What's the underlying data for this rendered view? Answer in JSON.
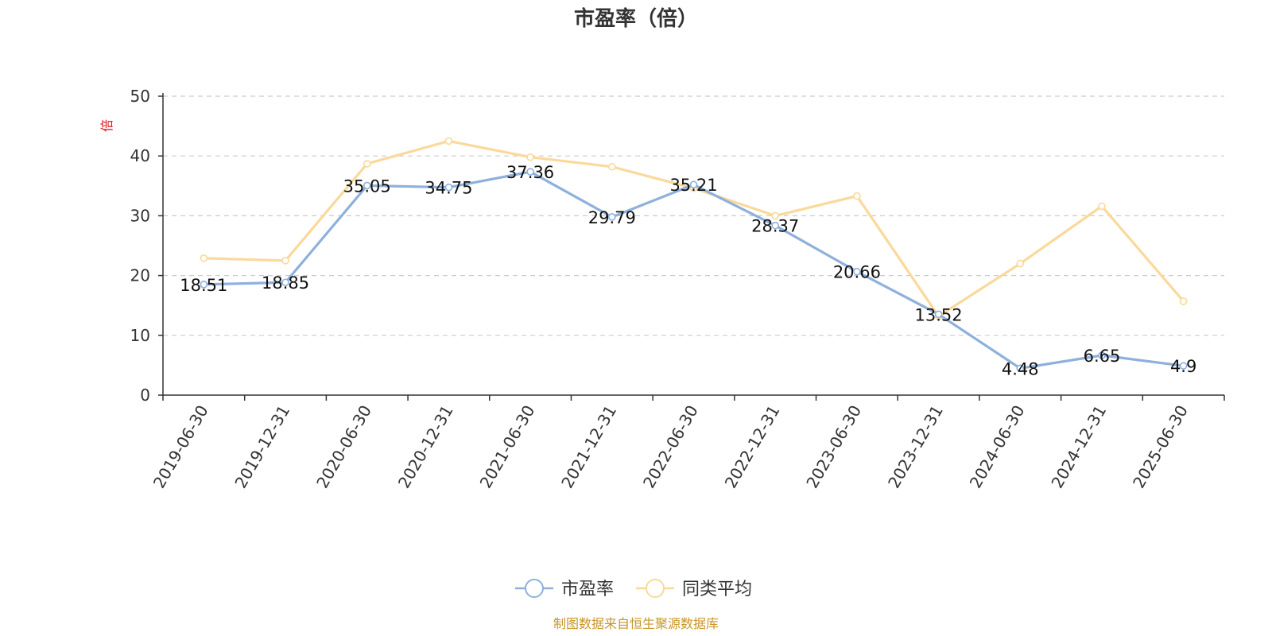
{
  "chart_data": {
    "type": "line",
    "title": "市盈率（倍）",
    "ylabel": "倍",
    "ylim": [
      0,
      50
    ],
    "yticks": [
      0,
      10,
      20,
      30,
      40,
      50
    ],
    "grid": "horizontal-dashed",
    "legend_position": "bottom-center",
    "categories": [
      "2019-06-30",
      "2019-12-31",
      "2020-06-30",
      "2020-12-31",
      "2021-06-30",
      "2021-12-31",
      "2022-06-30",
      "2022-12-31",
      "2023-06-30",
      "2023-12-31",
      "2024-06-30",
      "2024-12-31",
      "2025-06-30"
    ],
    "series": [
      {
        "name": "市盈率",
        "color": "#8eb0dc",
        "values": [
          18.51,
          18.85,
          35.05,
          34.75,
          37.36,
          29.79,
          35.21,
          28.37,
          20.66,
          13.52,
          4.48,
          6.65,
          4.9
        ],
        "labels": [
          "18.51",
          "18.85",
          "35.05",
          "34.75",
          "37.36",
          "29.79",
          "35.21",
          "28.37",
          "20.66",
          "13.52",
          "4.48",
          "6.65",
          "4.9"
        ]
      },
      {
        "name": "同类平均",
        "color": "#fad99a",
        "values": [
          22.9,
          22.5,
          38.7,
          42.5,
          39.8,
          38.2,
          34.6,
          30.0,
          33.3,
          13.2,
          22.0,
          31.6,
          15.7
        ]
      }
    ]
  },
  "source_note": "制图数据来自恒生聚源数据库"
}
